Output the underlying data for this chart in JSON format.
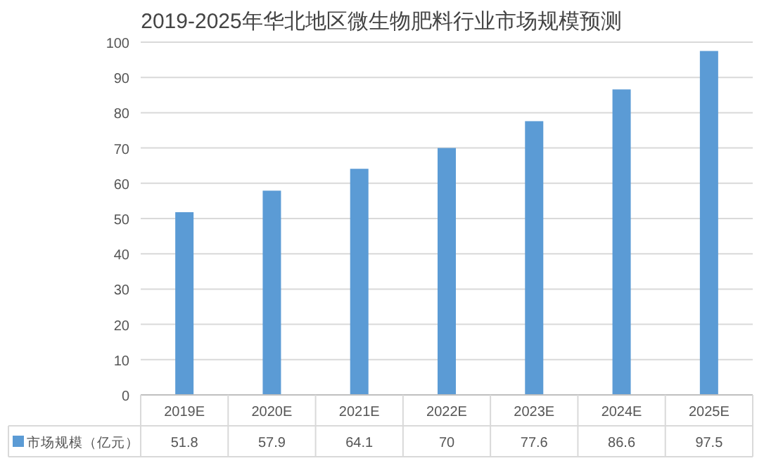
{
  "chart_data": {
    "type": "bar",
    "title": "2019-2025年华北地区微生物肥料行业市场规模预测",
    "categories": [
      "2019E",
      "2020E",
      "2021E",
      "2022E",
      "2023E",
      "2024E",
      "2025E"
    ],
    "series": [
      {
        "name": "市场规模（亿元）",
        "color": "#5b9bd5",
        "values": [
          51.8,
          57.9,
          64.1,
          70,
          77.6,
          86.6,
          97.5
        ]
      }
    ],
    "ylim": [
      0,
      100
    ],
    "yticks": [
      0,
      10,
      20,
      30,
      40,
      50,
      60,
      70,
      80,
      90,
      100
    ],
    "grid": "y",
    "legend": "bottom",
    "data_labels": true
  }
}
